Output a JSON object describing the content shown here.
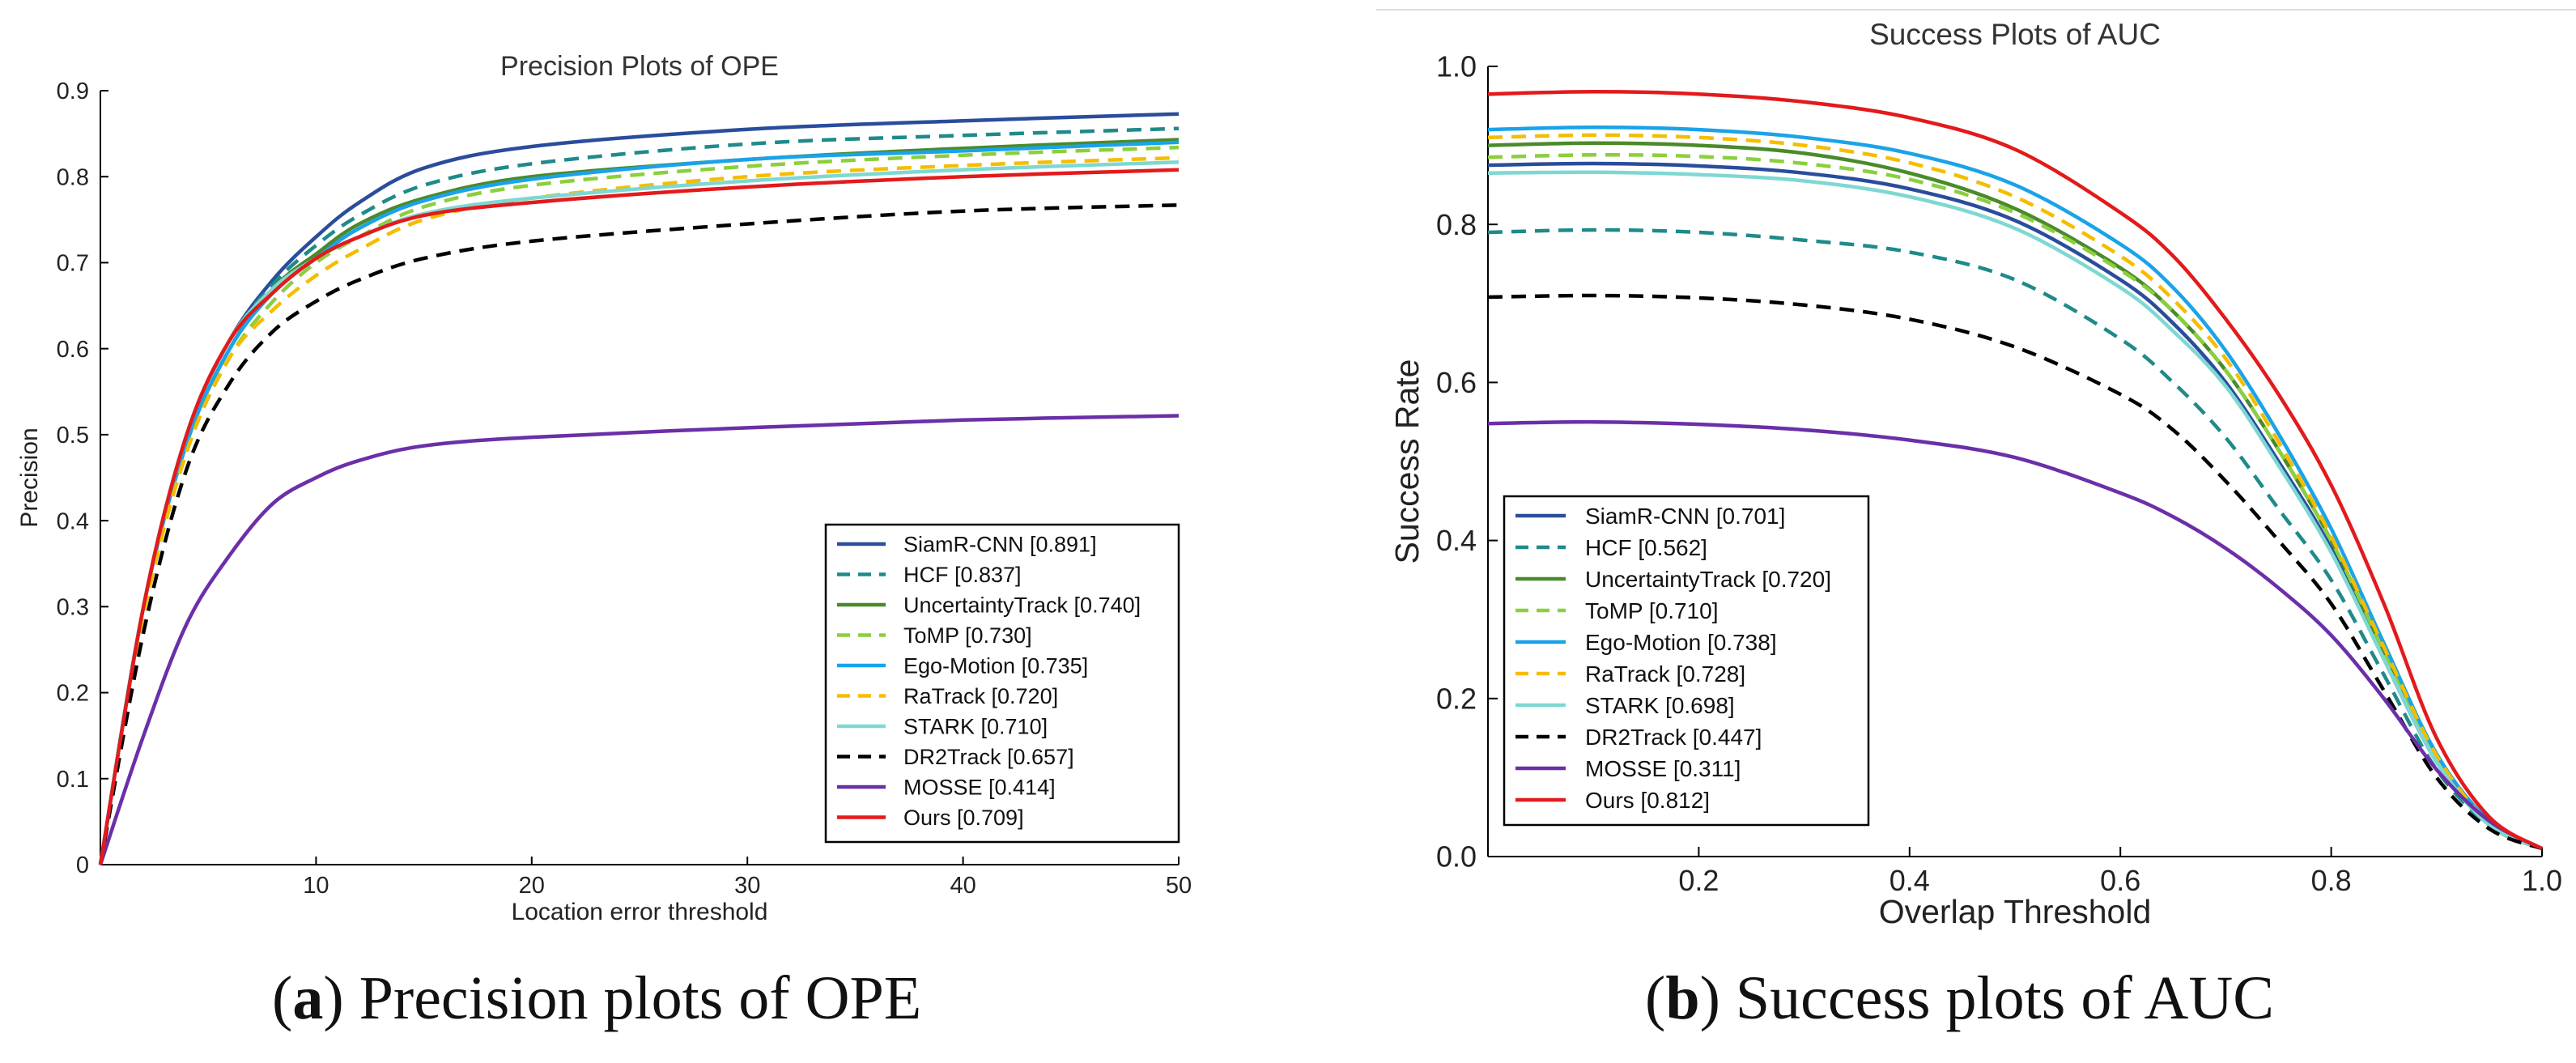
{
  "chart_data": [
    {
      "type": "line",
      "title": "Precision Plots of OPE",
      "xlabel": "Location error threshold",
      "ylabel": "Precision",
      "xlim": [
        0,
        50
      ],
      "ylim": [
        0,
        0.9
      ],
      "xticks": [
        10,
        20,
        30,
        40,
        50
      ],
      "xtick_labels": [
        "10",
        "20",
        "30",
        "40",
        "50"
      ],
      "yticks": [
        0,
        0.1,
        0.2,
        0.3,
        0.4,
        0.5,
        0.6,
        0.7,
        0.8,
        0.9
      ],
      "ytick_labels": [
        "0",
        "0.1",
        "0.2",
        "0.3",
        "0.4",
        "0.5",
        "0.6",
        "0.7",
        "0.8",
        "0.9"
      ],
      "grid": false,
      "legend_position": "lower-right",
      "series": [
        {
          "name": "SiamR-CNN [0.891]",
          "color": "#2a4d9b",
          "style": "solid",
          "x": [
            0,
            2,
            4,
            6,
            8,
            10,
            12,
            15,
            20,
            30,
            40,
            50
          ],
          "y": [
            0,
            0.3,
            0.5,
            0.61,
            0.68,
            0.73,
            0.77,
            0.81,
            0.835,
            0.855,
            0.865,
            0.873
          ]
        },
        {
          "name": "HCF [0.837]",
          "color": "#1f8a8a",
          "style": "dashed",
          "x": [
            0,
            2,
            4,
            6,
            8,
            10,
            12,
            15,
            20,
            30,
            40,
            50
          ],
          "y": [
            0,
            0.3,
            0.5,
            0.61,
            0.675,
            0.72,
            0.755,
            0.79,
            0.815,
            0.838,
            0.848,
            0.856
          ]
        },
        {
          "name": "UncertaintyTrack [0.740]",
          "color": "#4a8a2a",
          "style": "solid",
          "x": [
            0,
            2,
            4,
            6,
            8,
            10,
            12,
            15,
            20,
            30,
            40,
            50
          ],
          "y": [
            0,
            0.3,
            0.49,
            0.6,
            0.67,
            0.71,
            0.745,
            0.775,
            0.8,
            0.82,
            0.833,
            0.843
          ]
        },
        {
          "name": "ToMP [0.730]",
          "color": "#8ccf3e",
          "style": "dashed",
          "x": [
            0,
            2,
            4,
            6,
            8,
            10,
            12,
            15,
            20,
            30,
            40,
            50
          ],
          "y": [
            0,
            0.29,
            0.48,
            0.59,
            0.655,
            0.7,
            0.73,
            0.765,
            0.79,
            0.812,
            0.825,
            0.834
          ]
        },
        {
          "name": "Ego-Motion [0.735]",
          "color": "#1aa3e8",
          "style": "solid",
          "x": [
            0,
            2,
            4,
            6,
            8,
            10,
            12,
            15,
            20,
            30,
            40,
            50
          ],
          "y": [
            0,
            0.3,
            0.49,
            0.6,
            0.665,
            0.705,
            0.74,
            0.772,
            0.797,
            0.82,
            0.83,
            0.84
          ]
        },
        {
          "name": "RaTrack [0.720]",
          "color": "#f5bd00",
          "style": "dashed",
          "x": [
            0,
            2,
            4,
            6,
            8,
            10,
            12,
            15,
            20,
            30,
            40,
            50
          ],
          "y": [
            0,
            0.29,
            0.48,
            0.59,
            0.645,
            0.685,
            0.715,
            0.75,
            0.775,
            0.8,
            0.813,
            0.822
          ]
        },
        {
          "name": "STARK [0.710]",
          "color": "#7ed8d2",
          "style": "solid",
          "x": [
            0,
            2,
            4,
            6,
            8,
            10,
            12,
            15,
            20,
            30,
            40,
            50
          ],
          "y": [
            0,
            0.3,
            0.5,
            0.61,
            0.67,
            0.705,
            0.73,
            0.757,
            0.775,
            0.795,
            0.808,
            0.817
          ]
        },
        {
          "name": "DR2Track [0.657]",
          "color": "#000000",
          "style": "dashed",
          "x": [
            0,
            2,
            4,
            6,
            8,
            10,
            12,
            15,
            20,
            30,
            40,
            50
          ],
          "y": [
            0,
            0.27,
            0.46,
            0.56,
            0.62,
            0.655,
            0.68,
            0.705,
            0.725,
            0.745,
            0.76,
            0.767
          ]
        },
        {
          "name": "MOSSE [0.414]",
          "color": "#6b2fa8",
          "style": "solid",
          "x": [
            0,
            2,
            4,
            6,
            8,
            10,
            12,
            15,
            20,
            30,
            40,
            50
          ],
          "y": [
            0,
            0.15,
            0.28,
            0.36,
            0.42,
            0.45,
            0.47,
            0.487,
            0.497,
            0.508,
            0.517,
            0.522
          ]
        },
        {
          "name": "Ours [0.709]",
          "color": "#e31a1c",
          "style": "solid",
          "x": [
            0,
            2,
            4,
            6,
            8,
            10,
            12,
            15,
            20,
            30,
            40,
            50
          ],
          "y": [
            0,
            0.3,
            0.5,
            0.61,
            0.665,
            0.705,
            0.73,
            0.755,
            0.77,
            0.788,
            0.8,
            0.808
          ]
        }
      ]
    },
    {
      "type": "line",
      "title": "Success Plots of AUC",
      "xlabel": "Overlap Threshold",
      "ylabel": "Success Rate",
      "xlim": [
        0,
        1.0
      ],
      "ylim": [
        0,
        1.0
      ],
      "xticks": [
        0.2,
        0.4,
        0.6,
        0.8,
        1.0
      ],
      "xtick_labels": [
        "0.2",
        "0.4",
        "0.6",
        "0.8",
        "1.0"
      ],
      "yticks": [
        0,
        0.2,
        0.4,
        0.6,
        0.8,
        1.0
      ],
      "ytick_labels": [
        "0.0",
        "0.2",
        "0.4",
        "0.6",
        "0.8",
        "1.0"
      ],
      "grid": false,
      "legend_position": "lower-left",
      "series": [
        {
          "name": "SiamR-CNN [0.701]",
          "color": "#2a4d9b",
          "style": "solid",
          "x": [
            0,
            0.1,
            0.2,
            0.3,
            0.4,
            0.5,
            0.6,
            0.65,
            0.7,
            0.75,
            0.8,
            0.85,
            0.9,
            0.95,
            1.0
          ],
          "y": [
            0.875,
            0.877,
            0.874,
            0.865,
            0.845,
            0.805,
            0.73,
            0.675,
            0.6,
            0.5,
            0.39,
            0.25,
            0.12,
            0.04,
            0.01
          ]
        },
        {
          "name": "HCF [0.562]",
          "color": "#1f8a8a",
          "style": "dashed",
          "x": [
            0,
            0.1,
            0.2,
            0.3,
            0.4,
            0.5,
            0.6,
            0.65,
            0.7,
            0.75,
            0.8,
            0.85,
            0.9,
            0.95,
            1.0
          ],
          "y": [
            0.79,
            0.793,
            0.79,
            0.78,
            0.765,
            0.73,
            0.655,
            0.6,
            0.53,
            0.44,
            0.35,
            0.23,
            0.11,
            0.04,
            0.01
          ]
        },
        {
          "name": "UncertaintyTrack [0.720]",
          "color": "#4a8a2a",
          "style": "solid",
          "x": [
            0,
            0.1,
            0.2,
            0.3,
            0.4,
            0.5,
            0.6,
            0.65,
            0.7,
            0.75,
            0.8,
            0.85,
            0.9,
            0.95,
            1.0
          ],
          "y": [
            0.9,
            0.903,
            0.9,
            0.89,
            0.865,
            0.82,
            0.745,
            0.69,
            0.615,
            0.515,
            0.4,
            0.26,
            0.125,
            0.04,
            0.01
          ]
        },
        {
          "name": "ToMP [0.710]",
          "color": "#8ccf3e",
          "style": "dashed",
          "x": [
            0,
            0.1,
            0.2,
            0.3,
            0.4,
            0.5,
            0.6,
            0.65,
            0.7,
            0.75,
            0.8,
            0.85,
            0.9,
            0.95,
            1.0
          ],
          "y": [
            0.885,
            0.888,
            0.886,
            0.877,
            0.857,
            0.815,
            0.742,
            0.69,
            0.615,
            0.515,
            0.4,
            0.26,
            0.125,
            0.04,
            0.01
          ]
        },
        {
          "name": "Ego-Motion [0.738]",
          "color": "#1aa3e8",
          "style": "solid",
          "x": [
            0,
            0.1,
            0.2,
            0.3,
            0.4,
            0.5,
            0.6,
            0.65,
            0.7,
            0.75,
            0.8,
            0.85,
            0.9,
            0.95,
            1.0
          ],
          "y": [
            0.92,
            0.923,
            0.92,
            0.91,
            0.89,
            0.85,
            0.775,
            0.72,
            0.64,
            0.535,
            0.415,
            0.27,
            0.13,
            0.045,
            0.01
          ]
        },
        {
          "name": "RaTrack [0.728]",
          "color": "#f5bd00",
          "style": "dashed",
          "x": [
            0,
            0.1,
            0.2,
            0.3,
            0.4,
            0.5,
            0.6,
            0.65,
            0.7,
            0.75,
            0.8,
            0.85,
            0.9,
            0.95,
            1.0
          ],
          "y": [
            0.91,
            0.913,
            0.91,
            0.9,
            0.878,
            0.835,
            0.76,
            0.705,
            0.63,
            0.525,
            0.405,
            0.265,
            0.128,
            0.043,
            0.01
          ]
        },
        {
          "name": "STARK [0.698]",
          "color": "#7ed8d2",
          "style": "solid",
          "x": [
            0,
            0.1,
            0.2,
            0.3,
            0.4,
            0.5,
            0.6,
            0.65,
            0.7,
            0.75,
            0.8,
            0.85,
            0.9,
            0.95,
            1.0
          ],
          "y": [
            0.865,
            0.866,
            0.863,
            0.855,
            0.835,
            0.795,
            0.72,
            0.665,
            0.595,
            0.495,
            0.385,
            0.25,
            0.12,
            0.04,
            0.01
          ]
        },
        {
          "name": "DR2Track [0.447]",
          "color": "#000000",
          "style": "dashed",
          "x": [
            0,
            0.1,
            0.2,
            0.3,
            0.4,
            0.5,
            0.6,
            0.65,
            0.7,
            0.75,
            0.8,
            0.85,
            0.9,
            0.95,
            1.0
          ],
          "y": [
            0.708,
            0.71,
            0.707,
            0.698,
            0.68,
            0.645,
            0.585,
            0.54,
            0.475,
            0.4,
            0.32,
            0.21,
            0.1,
            0.035,
            0.01
          ]
        },
        {
          "name": "MOSSE [0.311]",
          "color": "#6b2fa8",
          "style": "solid",
          "x": [
            0,
            0.1,
            0.2,
            0.3,
            0.4,
            0.5,
            0.6,
            0.65,
            0.7,
            0.75,
            0.8,
            0.85,
            0.9,
            0.95,
            1.0
          ],
          "y": [
            0.548,
            0.55,
            0.547,
            0.54,
            0.527,
            0.505,
            0.46,
            0.43,
            0.39,
            0.34,
            0.28,
            0.2,
            0.11,
            0.045,
            0.01
          ]
        },
        {
          "name": "Ours [0.812]",
          "color": "#e31a1c",
          "style": "solid",
          "x": [
            0,
            0.1,
            0.2,
            0.3,
            0.4,
            0.5,
            0.6,
            0.65,
            0.7,
            0.75,
            0.8,
            0.85,
            0.9,
            0.95,
            1.0
          ],
          "y": [
            0.965,
            0.968,
            0.965,
            0.955,
            0.935,
            0.895,
            0.815,
            0.76,
            0.68,
            0.585,
            0.47,
            0.32,
            0.15,
            0.05,
            0.01
          ]
        }
      ]
    }
  ],
  "captions": [
    {
      "label": "a",
      "text": " Precision plots of OPE"
    },
    {
      "label": "b",
      "text": " Success plots of AUC"
    }
  ]
}
